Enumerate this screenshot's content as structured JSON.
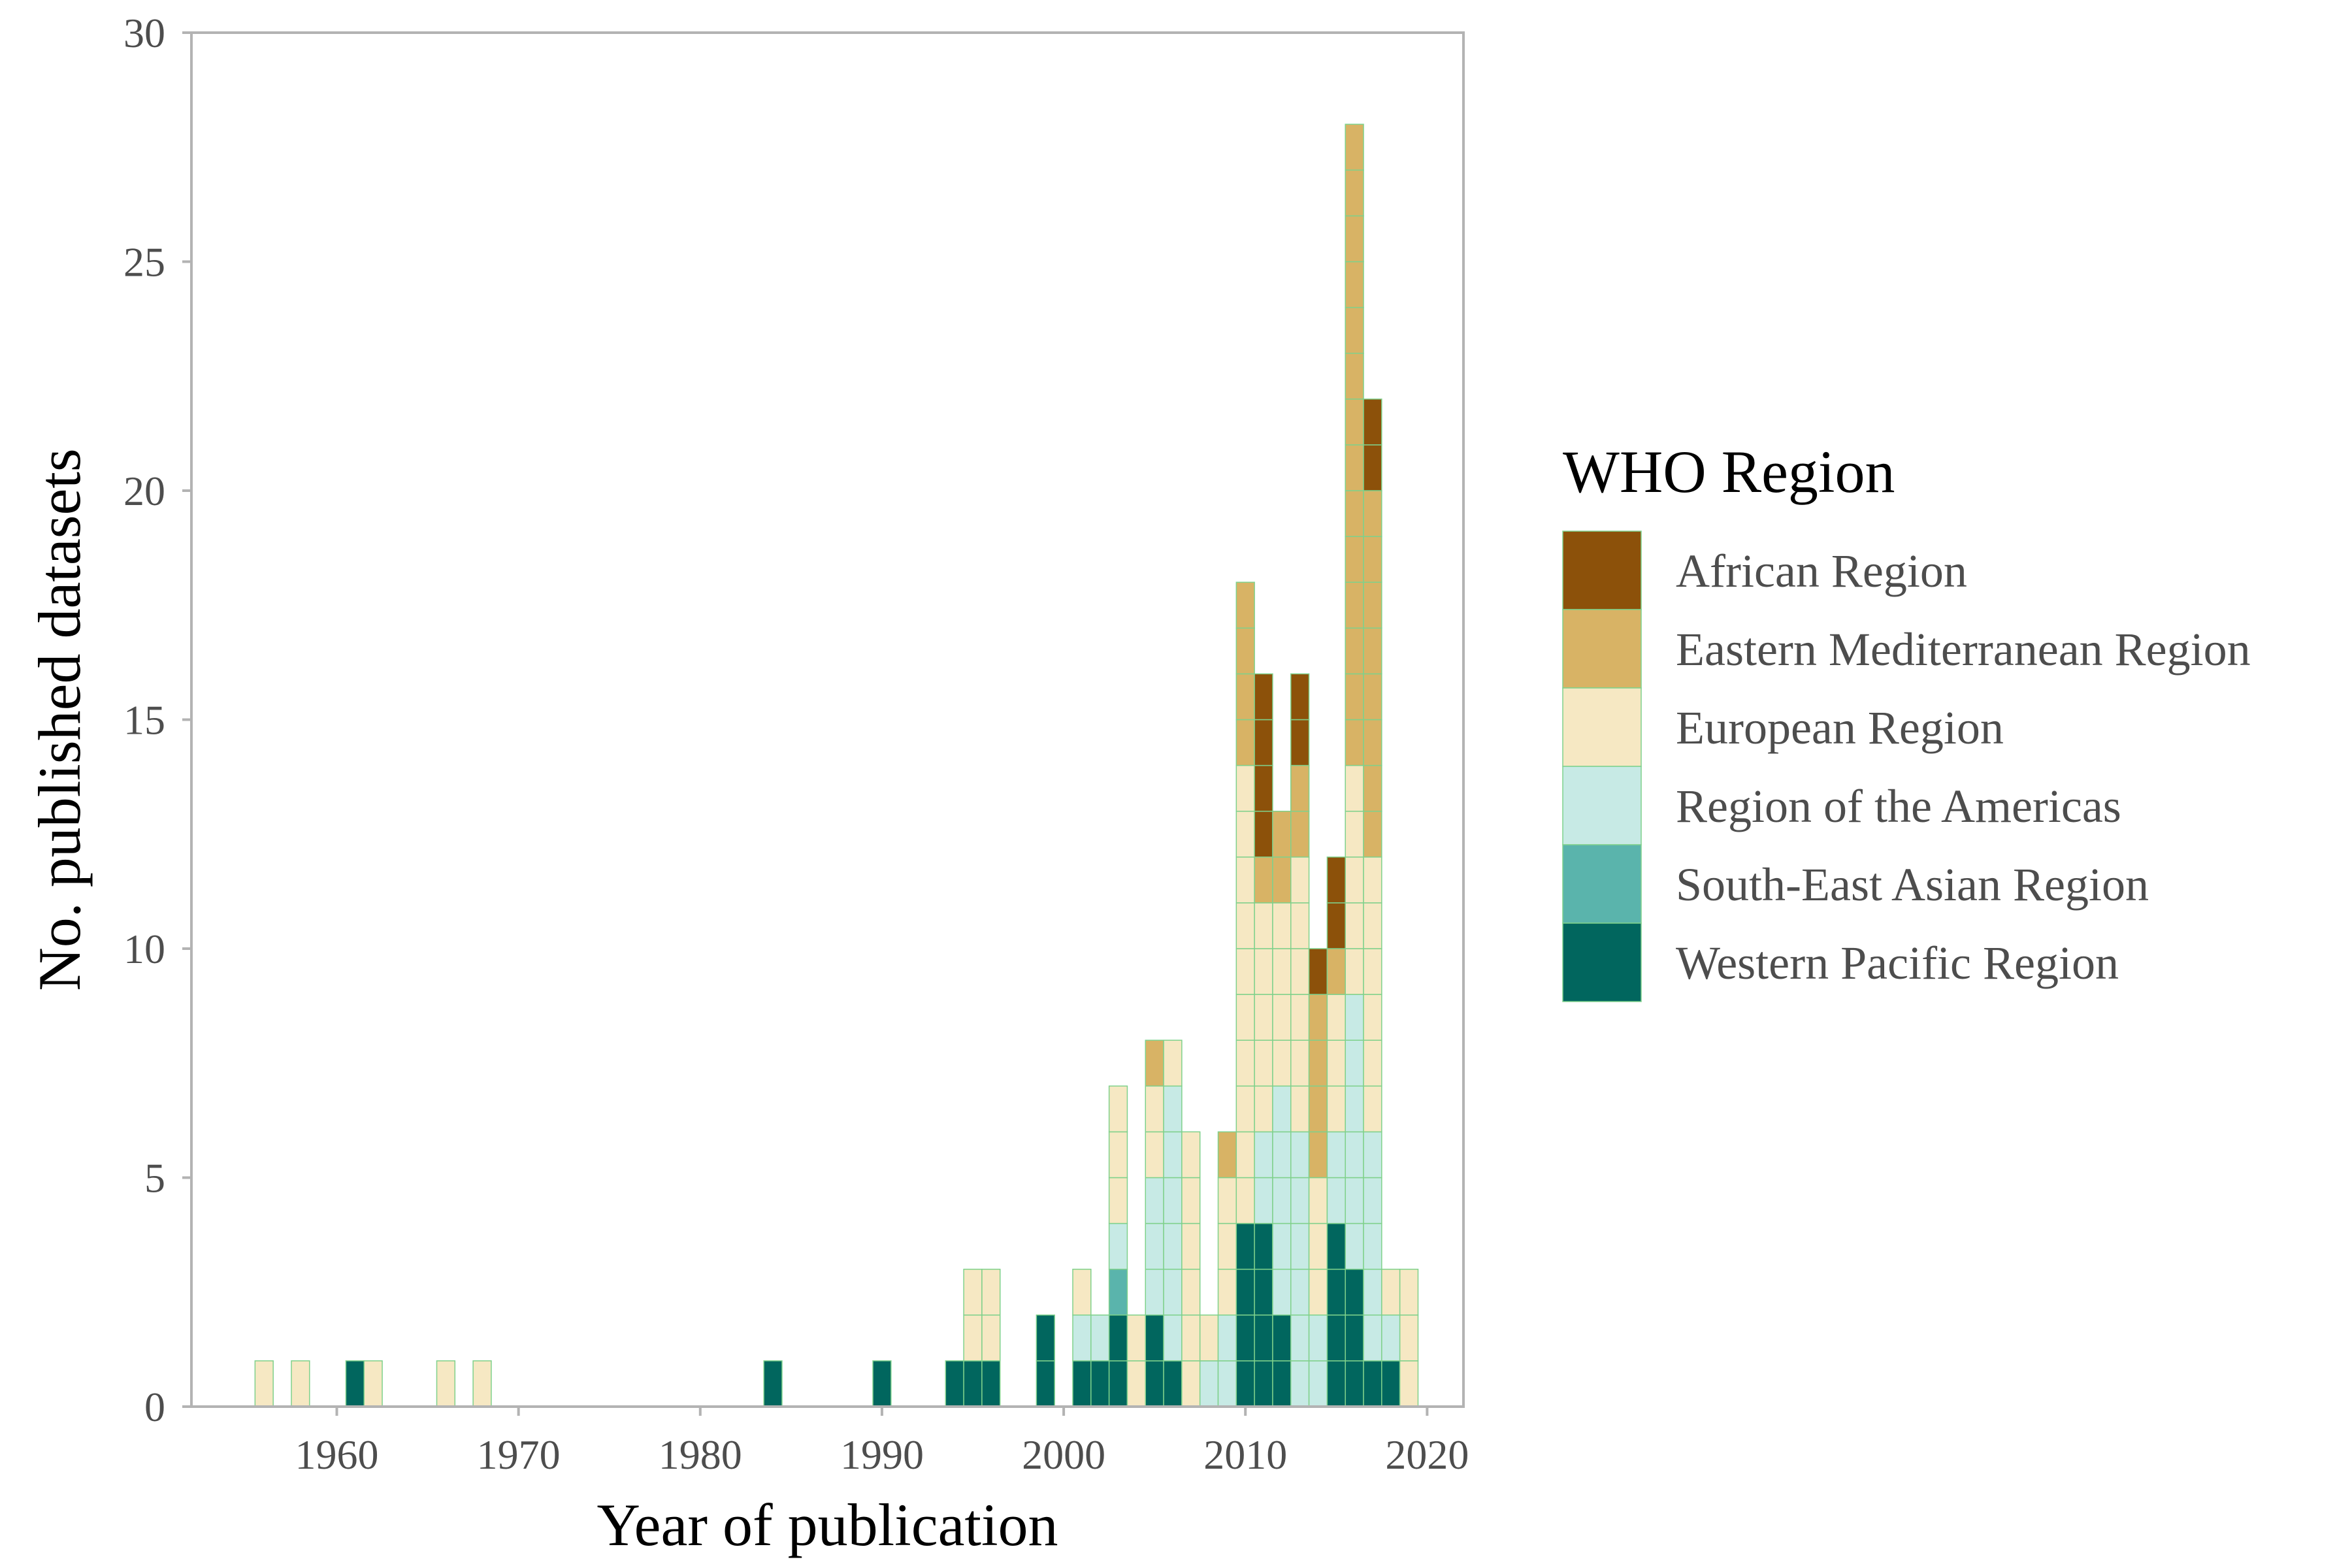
{
  "chart_data": {
    "type": "bar",
    "stacked": true,
    "title": "",
    "xlabel": "Year of publication",
    "ylabel": "No. published datasets",
    "xlim": [
      1952,
      2022
    ],
    "ylim": [
      0,
      30
    ],
    "x_ticks": [
      1960,
      1970,
      1980,
      1990,
      2000,
      2010,
      2020
    ],
    "y_ticks": [
      0,
      5,
      10,
      15,
      20,
      25,
      30
    ],
    "grid": false,
    "legend": {
      "title": "WHO Region",
      "placement": "right"
    },
    "years": [
      1956,
      1958,
      1961,
      1962,
      1966,
      1968,
      1984,
      1990,
      1994,
      1995,
      1996,
      1999,
      2001,
      2002,
      2003,
      2004,
      2005,
      2006,
      2007,
      2008,
      2009,
      2010,
      2011,
      2012,
      2013,
      2014,
      2015,
      2016,
      2017,
      2018,
      2019
    ],
    "series": [
      {
        "name": "Western Pacific Region",
        "color": "#01665e",
        "values": [
          0,
          0,
          1,
          0,
          0,
          0,
          1,
          1,
          1,
          1,
          1,
          2,
          1,
          1,
          2,
          0,
          2,
          1,
          0,
          0,
          0,
          4,
          4,
          2,
          0,
          0,
          4,
          3,
          1,
          1,
          0
        ]
      },
      {
        "name": "South-East Asian Region",
        "color": "#5ab4ac",
        "values": [
          0,
          0,
          0,
          0,
          0,
          0,
          0,
          0,
          0,
          0,
          0,
          0,
          0,
          0,
          1,
          0,
          0,
          0,
          0,
          0,
          0,
          0,
          0,
          0,
          0,
          0,
          0,
          0,
          0,
          0,
          0
        ]
      },
      {
        "name": "Region of the Americas",
        "color": "#c7eae5",
        "values": [
          0,
          0,
          0,
          0,
          0,
          0,
          0,
          0,
          0,
          0,
          0,
          0,
          1,
          1,
          1,
          0,
          3,
          6,
          0,
          1,
          2,
          0,
          2,
          5,
          6,
          2,
          2,
          6,
          5,
          1,
          0
        ]
      },
      {
        "name": "European Region",
        "color": "#f6e8c3",
        "values": [
          1,
          1,
          0,
          1,
          1,
          1,
          0,
          0,
          0,
          2,
          2,
          0,
          1,
          0,
          3,
          2,
          2,
          1,
          6,
          1,
          3,
          10,
          5,
          4,
          6,
          3,
          3,
          5,
          6,
          1,
          3
        ]
      },
      {
        "name": "Eastern Mediterranean Region",
        "color": "#d8b365",
        "values": [
          0,
          0,
          0,
          0,
          0,
          0,
          0,
          0,
          0,
          0,
          0,
          0,
          0,
          0,
          0,
          0,
          1,
          0,
          0,
          0,
          1,
          4,
          1,
          2,
          2,
          4,
          1,
          14,
          8,
          0,
          0
        ]
      },
      {
        "name": "African Region",
        "color": "#8c510a",
        "values": [
          0,
          0,
          0,
          0,
          0,
          0,
          0,
          0,
          0,
          0,
          0,
          0,
          0,
          0,
          0,
          0,
          0,
          0,
          0,
          0,
          0,
          0,
          4,
          0,
          2,
          1,
          2,
          0,
          2,
          0,
          0
        ]
      }
    ],
    "legend_order": [
      "African Region",
      "Eastern Mediterranean Region",
      "European Region",
      "Region of the Americas",
      "South-East Asian Region",
      "Western Pacific Region"
    ]
  }
}
